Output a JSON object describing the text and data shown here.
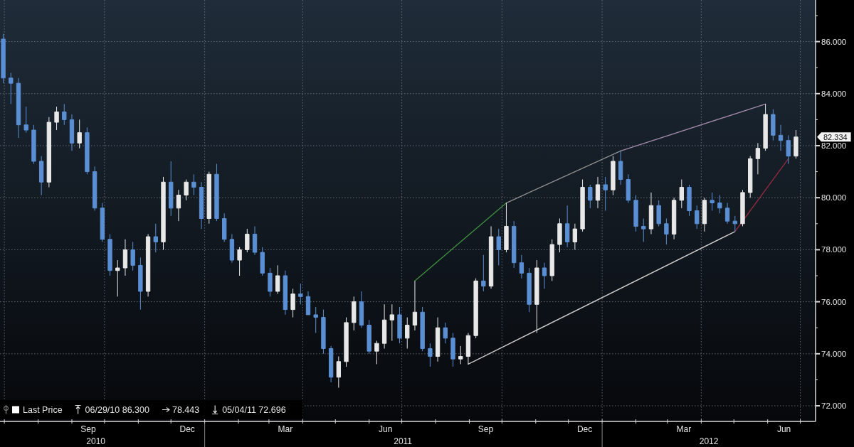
{
  "chart_data": {
    "type": "candlestick",
    "xlim": [
      "2010-06-27",
      "2012-07-15"
    ],
    "ylim": [
      71.4,
      87.6
    ],
    "xticks": [
      {
        "value": "2010-07-01",
        "label": null
      },
      {
        "value": "2010-08-01",
        "label": null
      },
      {
        "value": "2010-09-01",
        "label": null
      },
      {
        "value": "2010-10-01",
        "label": null
      },
      {
        "value": "2010-11-01",
        "label": null
      },
      {
        "value": "2010-12-01",
        "label": null
      },
      {
        "value": "2011-01-01",
        "label": null
      },
      {
        "value": "2011-02-01",
        "label": null
      },
      {
        "value": "2011-03-01",
        "label": null
      },
      {
        "value": "2011-04-01",
        "label": null
      },
      {
        "value": "2011-05-01",
        "label": null
      },
      {
        "value": "2011-06-01",
        "label": null
      },
      {
        "value": "2011-07-01",
        "label": null
      },
      {
        "value": "2011-08-01",
        "label": null
      },
      {
        "value": "2011-09-01",
        "label": null
      },
      {
        "value": "2011-10-01",
        "label": null
      },
      {
        "value": "2011-11-01",
        "label": null
      },
      {
        "value": "2011-12-01",
        "label": null
      },
      {
        "value": "2012-01-01",
        "label": null
      },
      {
        "value": "2012-02-01",
        "label": null
      },
      {
        "value": "2012-03-01",
        "label": null
      },
      {
        "value": "2012-04-01",
        "label": null
      },
      {
        "value": "2012-05-01",
        "label": null
      },
      {
        "value": "2012-06-01",
        "label": null
      },
      {
        "value": "2012-07-01",
        "label": null
      },
      {
        "value": "2010-09-16",
        "label": "Sep"
      },
      {
        "value": "2010-12-16",
        "label": "Dec"
      },
      {
        "value": "2011-03-16",
        "label": "Mar"
      },
      {
        "value": "2011-06-16",
        "label": "Jun"
      },
      {
        "value": "2011-09-16",
        "label": "Sep"
      },
      {
        "value": "2011-12-16",
        "label": "Dec"
      },
      {
        "value": "2012-03-16",
        "label": "Mar"
      },
      {
        "value": "2012-06-16",
        "label": "Jun"
      }
    ],
    "x2lim": [
      "2010-06-27",
      "2012-07-15"
    ],
    "x2ticks": [
      {
        "value": "2010-09-23",
        "label": "2010"
      },
      {
        "value": "2011-07-02",
        "label": "2011"
      },
      {
        "value": "2012-04-08",
        "label": "2012"
      }
    ],
    "yticks": [
      {
        "value": 72,
        "label": "72.000"
      },
      {
        "value": 73,
        "label": null
      },
      {
        "value": 74,
        "label": "74.000"
      },
      {
        "value": 75,
        "label": null
      },
      {
        "value": 76,
        "label": "76.000"
      },
      {
        "value": 77,
        "label": null
      },
      {
        "value": 78,
        "label": "78.000"
      },
      {
        "value": 79,
        "label": null
      },
      {
        "value": 80,
        "label": "80.000"
      },
      {
        "value": 81,
        "label": null
      },
      {
        "value": 82,
        "label": "82.000"
      },
      {
        "value": 83,
        "label": null
      },
      {
        "value": 84,
        "label": "84.000"
      },
      {
        "value": 85,
        "label": null
      },
      {
        "value": 86,
        "label": "86.000"
      },
      {
        "value": 87,
        "label": null
      }
    ],
    "grid": true,
    "legend": "bottom left",
    "series": [
      {
        "name": "Last Price",
        "color": "#ffffff",
        "x": [
          "2010-06-30",
          "2010-07-07",
          "2010-07-14",
          "2010-07-21",
          "2010-07-28",
          "2010-08-04",
          "2010-08-11",
          "2010-08-18",
          "2010-08-25",
          "2010-09-01",
          "2010-09-08",
          "2010-09-15",
          "2010-09-22",
          "2010-09-29",
          "2010-10-06",
          "2010-10-13",
          "2010-10-20",
          "2010-10-27",
          "2010-11-03",
          "2010-11-10",
          "2010-11-17",
          "2010-11-24",
          "2010-12-01",
          "2010-12-08",
          "2010-12-15",
          "2010-12-22",
          "2010-12-29",
          "2011-01-05",
          "2011-01-12",
          "2011-01-19",
          "2011-01-26",
          "2011-02-02",
          "2011-02-09",
          "2011-02-16",
          "2011-02-23",
          "2011-03-02",
          "2011-03-09",
          "2011-03-16",
          "2011-03-23",
          "2011-03-30",
          "2011-04-06",
          "2011-04-13",
          "2011-04-20",
          "2011-04-27",
          "2011-05-04",
          "2011-05-11",
          "2011-05-18",
          "2011-05-25",
          "2011-06-01",
          "2011-06-08",
          "2011-06-15",
          "2011-06-22",
          "2011-06-29",
          "2011-07-06",
          "2011-07-13",
          "2011-07-20",
          "2011-07-27",
          "2011-08-03",
          "2011-08-10",
          "2011-08-17",
          "2011-08-24",
          "2011-08-31",
          "2011-09-07",
          "2011-09-14",
          "2011-09-21",
          "2011-09-28",
          "2011-10-05",
          "2011-10-12",
          "2011-10-19",
          "2011-10-26",
          "2011-11-02",
          "2011-11-09",
          "2011-11-16",
          "2011-11-23",
          "2011-11-30",
          "2011-12-07",
          "2011-12-14",
          "2011-12-21",
          "2011-12-28",
          "2012-01-04",
          "2012-01-11",
          "2012-01-18",
          "2012-01-25",
          "2012-02-01",
          "2012-02-08",
          "2012-02-15",
          "2012-02-22",
          "2012-02-29",
          "2012-03-07",
          "2012-03-14",
          "2012-03-21",
          "2012-03-28",
          "2012-04-04",
          "2012-04-11",
          "2012-04-18",
          "2012-04-25",
          "2012-05-02",
          "2012-05-09",
          "2012-05-16",
          "2012-05-23",
          "2012-05-30",
          "2012-06-06",
          "2012-06-13",
          "2012-06-20",
          "2012-06-27"
        ],
        "ohlc": [
          [
            86.1,
            86.3,
            84.4,
            84.6
          ],
          [
            84.6,
            84.8,
            83.6,
            84.4
          ],
          [
            84.4,
            84.6,
            82.3,
            82.8
          ],
          [
            82.8,
            83.5,
            82.5,
            82.6
          ],
          [
            82.6,
            82.8,
            81.3,
            81.4
          ],
          [
            81.4,
            81.6,
            80.1,
            80.6
          ],
          [
            80.6,
            83.1,
            80.4,
            82.9
          ],
          [
            82.9,
            83.5,
            82.6,
            83.3
          ],
          [
            83.3,
            83.6,
            82.8,
            83.0
          ],
          [
            83.0,
            83.2,
            81.8,
            82.1
          ],
          [
            82.1,
            83.0,
            81.9,
            82.5
          ],
          [
            82.5,
            82.7,
            80.9,
            81.0
          ],
          [
            81.0,
            81.2,
            79.5,
            79.6
          ],
          [
            79.6,
            79.8,
            78.3,
            78.4
          ],
          [
            78.4,
            78.6,
            77.0,
            77.2
          ],
          [
            77.2,
            77.6,
            76.2,
            77.3
          ],
          [
            77.3,
            78.4,
            77.0,
            78.0
          ],
          [
            78.0,
            78.3,
            77.2,
            77.4
          ],
          [
            77.4,
            77.7,
            75.7,
            76.4
          ],
          [
            76.4,
            78.6,
            76.2,
            78.5
          ],
          [
            78.5,
            79.0,
            77.9,
            78.3
          ],
          [
            78.3,
            80.8,
            78.0,
            80.6
          ],
          [
            80.6,
            81.4,
            79.3,
            79.6
          ],
          [
            79.6,
            80.3,
            79.1,
            80.1
          ],
          [
            80.1,
            80.7,
            79.9,
            80.6
          ],
          [
            80.6,
            80.9,
            80.1,
            80.4
          ],
          [
            80.4,
            80.6,
            78.8,
            79.2
          ],
          [
            79.2,
            81.0,
            79.0,
            80.9
          ],
          [
            80.9,
            81.3,
            79.1,
            79.2
          ],
          [
            79.2,
            79.4,
            78.3,
            78.4
          ],
          [
            78.4,
            78.6,
            77.5,
            77.6
          ],
          [
            77.6,
            78.1,
            77.0,
            78.0
          ],
          [
            78.0,
            78.8,
            77.9,
            78.6
          ],
          [
            78.6,
            78.9,
            77.8,
            77.9
          ],
          [
            77.9,
            78.1,
            77.0,
            77.1
          ],
          [
            77.1,
            77.3,
            76.2,
            76.4
          ],
          [
            76.4,
            77.4,
            76.3,
            77.0
          ],
          [
            77.0,
            77.2,
            75.5,
            75.7
          ],
          [
            75.7,
            76.5,
            75.4,
            76.3
          ],
          [
            76.3,
            76.7,
            75.9,
            76.2
          ],
          [
            76.2,
            76.4,
            75.5,
            75.5
          ],
          [
            75.5,
            75.8,
            74.8,
            75.4
          ],
          [
            75.4,
            75.7,
            74.0,
            74.2
          ],
          [
            74.2,
            74.3,
            72.9,
            73.1
          ],
          [
            73.1,
            73.9,
            72.696,
            73.7
          ],
          [
            73.7,
            75.4,
            73.5,
            75.2
          ],
          [
            75.2,
            76.2,
            74.9,
            76.0
          ],
          [
            76.0,
            76.4,
            75.0,
            75.1
          ],
          [
            75.1,
            75.3,
            74.0,
            74.1
          ],
          [
            74.1,
            74.5,
            73.6,
            74.4
          ],
          [
            74.4,
            75.9,
            74.2,
            75.3
          ],
          [
            75.3,
            75.9,
            74.5,
            75.5
          ],
          [
            75.5,
            75.8,
            74.4,
            74.6
          ],
          [
            74.6,
            75.4,
            74.2,
            75.1
          ],
          [
            75.1,
            76.8,
            74.9,
            75.6
          ],
          [
            75.6,
            75.8,
            74.1,
            74.2
          ],
          [
            74.2,
            74.4,
            73.5,
            73.9
          ],
          [
            73.9,
            75.4,
            73.7,
            75.0
          ],
          [
            75.0,
            75.2,
            74.4,
            74.6
          ],
          [
            74.6,
            74.8,
            73.5,
            73.8
          ],
          [
            73.8,
            74.3,
            73.6,
            73.9
          ],
          [
            73.9,
            74.8,
            73.6,
            74.7
          ],
          [
            74.7,
            76.9,
            74.6,
            76.8
          ],
          [
            76.8,
            77.8,
            76.4,
            76.6
          ],
          [
            76.6,
            78.9,
            76.5,
            78.5
          ],
          [
            78.5,
            78.8,
            77.4,
            78.0
          ],
          [
            78.0,
            79.8,
            77.9,
            78.9
          ],
          [
            78.9,
            79.1,
            77.3,
            77.5
          ],
          [
            77.5,
            77.8,
            76.9,
            77.1
          ],
          [
            77.1,
            77.3,
            75.6,
            75.9
          ],
          [
            75.9,
            77.6,
            74.8,
            77.3
          ],
          [
            77.3,
            77.5,
            76.5,
            77.0
          ],
          [
            77.0,
            78.4,
            76.8,
            78.2
          ],
          [
            78.2,
            79.2,
            77.9,
            79.0
          ],
          [
            79.0,
            79.7,
            78.1,
            78.3
          ],
          [
            78.3,
            79.0,
            78.0,
            78.8
          ],
          [
            78.8,
            80.7,
            78.7,
            80.4
          ],
          [
            80.4,
            80.5,
            79.6,
            79.9
          ],
          [
            79.9,
            80.8,
            79.6,
            80.5
          ],
          [
            80.5,
            80.8,
            79.5,
            80.3
          ],
          [
            80.3,
            81.6,
            80.1,
            81.4
          ],
          [
            81.4,
            81.8,
            80.5,
            80.7
          ],
          [
            80.7,
            80.9,
            79.8,
            79.9
          ],
          [
            79.9,
            80.1,
            78.7,
            78.9
          ],
          [
            78.9,
            79.2,
            78.3,
            78.8
          ],
          [
            78.8,
            80.2,
            78.6,
            79.7
          ],
          [
            79.7,
            79.9,
            78.9,
            79.0
          ],
          [
            79.0,
            79.2,
            78.2,
            78.6
          ],
          [
            78.6,
            80.0,
            78.4,
            79.9
          ],
          [
            79.9,
            80.7,
            79.6,
            80.4
          ],
          [
            80.4,
            80.5,
            79.3,
            79.5
          ],
          [
            79.5,
            79.7,
            78.8,
            79.0
          ],
          [
            79.0,
            80.0,
            78.7,
            79.9
          ],
          [
            79.9,
            80.2,
            79.5,
            79.8
          ],
          [
            79.8,
            80.1,
            79.4,
            79.6
          ],
          [
            79.6,
            79.8,
            79.0,
            79.1
          ],
          [
            79.1,
            79.3,
            78.7,
            79.0
          ],
          [
            79.0,
            80.3,
            78.9,
            80.2
          ],
          [
            80.2,
            81.6,
            80.0,
            81.5
          ],
          [
            81.5,
            82.1,
            80.9,
            81.9
          ],
          [
            81.9,
            83.6,
            81.8,
            83.2
          ],
          [
            83.2,
            83.4,
            82.2,
            82.4
          ],
          [
            82.4,
            82.8,
            81.8,
            82.2
          ],
          [
            82.2,
            82.4,
            81.3,
            81.6
          ],
          [
            81.6,
            82.6,
            81.5,
            82.334
          ]
        ],
        "value_labels": [
          null,
          null,
          null,
          null,
          null,
          null,
          null,
          null,
          null,
          null,
          null,
          null,
          null,
          null,
          null,
          null,
          null,
          null,
          null,
          null,
          null,
          null,
          null,
          null,
          null,
          null,
          null,
          null,
          null,
          null,
          null,
          null,
          null,
          null,
          null,
          null,
          null,
          null,
          null,
          null,
          null,
          null,
          null,
          null,
          null,
          null,
          null,
          null,
          null,
          null,
          null,
          null,
          null,
          null,
          null,
          null,
          null,
          null,
          null,
          null,
          null,
          null,
          null,
          null,
          null,
          null,
          null,
          null,
          null,
          null,
          null,
          null,
          null,
          null,
          null,
          null,
          null,
          null,
          null,
          null,
          null,
          null,
          null,
          null,
          null,
          null,
          null,
          null,
          null,
          null,
          null,
          null,
          null,
          null,
          null,
          null,
          null,
          null,
          null,
          null,
          null,
          null,
          null,
          null,
          "82.334"
        ],
        "colors": [
          "#5b8fd4",
          "#5b8fd4",
          "#5b8fd4",
          "#5b8fd4",
          "#5b8fd4",
          "#5b8fd4",
          "#e8e8e8",
          "#e8e8e8",
          "#5b8fd4",
          "#5b8fd4",
          "#e8e8e8",
          "#5b8fd4",
          "#5b8fd4",
          "#5b8fd4",
          "#5b8fd4",
          "#e8e8e8",
          "#e8e8e8",
          "#5b8fd4",
          "#5b8fd4",
          "#e8e8e8",
          "#5b8fd4",
          "#e8e8e8",
          "#5b8fd4",
          "#e8e8e8",
          "#e8e8e8",
          "#5b8fd4",
          "#5b8fd4",
          "#e8e8e8",
          "#5b8fd4",
          "#5b8fd4",
          "#5b8fd4",
          "#e8e8e8",
          "#e8e8e8",
          "#5b8fd4",
          "#5b8fd4",
          "#5b8fd4",
          "#e8e8e8",
          "#5b8fd4",
          "#e8e8e8",
          "#5b8fd4",
          "#5b8fd4",
          "#5b8fd4",
          "#5b8fd4",
          "#5b8fd4",
          "#e8e8e8",
          "#e8e8e8",
          "#e8e8e8",
          "#5b8fd4",
          "#5b8fd4",
          "#e8e8e8",
          "#e8e8e8",
          "#e8e8e8",
          "#5b8fd4",
          "#e8e8e8",
          "#e8e8e8",
          "#5b8fd4",
          "#5b8fd4",
          "#e8e8e8",
          "#5b8fd4",
          "#5b8fd4",
          "#e8e8e8",
          "#e8e8e8",
          "#e8e8e8",
          "#5b8fd4",
          "#e8e8e8",
          "#5b8fd4",
          "#e8e8e8",
          "#5b8fd4",
          "#5b8fd4",
          "#5b8fd4",
          "#e8e8e8",
          "#5b8fd4",
          "#e8e8e8",
          "#e8e8e8",
          "#5b8fd4",
          "#e8e8e8",
          "#e8e8e8",
          "#5b8fd4",
          "#e8e8e8",
          "#5b8fd4",
          "#e8e8e8",
          "#5b8fd4",
          "#5b8fd4",
          "#5b8fd4",
          "#5b8fd4",
          "#e8e8e8",
          "#5b8fd4",
          "#5b8fd4",
          "#e8e8e8",
          "#e8e8e8",
          "#5b8fd4",
          "#5b8fd4",
          "#e8e8e8",
          "#5b8fd4",
          "#5b8fd4",
          "#5b8fd4",
          "#5b8fd4",
          "#e8e8e8",
          "#e8e8e8",
          "#e8e8e8",
          "#e8e8e8",
          "#5b8fd4",
          "#5b8fd4",
          "#5b8fd4",
          "#e8e8e8"
        ]
      },
      {
        "type": "line",
        "color": "#3e8e3e",
        "x": [
          "2011-07-13",
          "2011-10-05"
        ],
        "values": [
          76.8,
          79.8
        ]
      },
      {
        "type": "line",
        "color": "#8e8e8e",
        "x": [
          "2011-10-05",
          "2012-01-18"
        ],
        "values": [
          79.8,
          81.8
        ]
      },
      {
        "type": "line",
        "color": "#a08aa6",
        "x": [
          "2012-01-18",
          "2012-05-30"
        ],
        "values": [
          81.8,
          83.6
        ]
      },
      {
        "type": "line",
        "color": "#c8c8c8",
        "x": [
          "2011-08-31",
          "2012-05-02"
        ],
        "values": [
          73.6,
          78.7
        ]
      },
      {
        "type": "line",
        "color": "#8e2a3e",
        "x": [
          "2012-05-02",
          "2012-06-20"
        ],
        "values": [
          78.7,
          81.5
        ]
      }
    ],
    "annotations": [
      "06/29/10 86.300",
      "78.443",
      "05/04/11 72.696"
    ]
  }
}
